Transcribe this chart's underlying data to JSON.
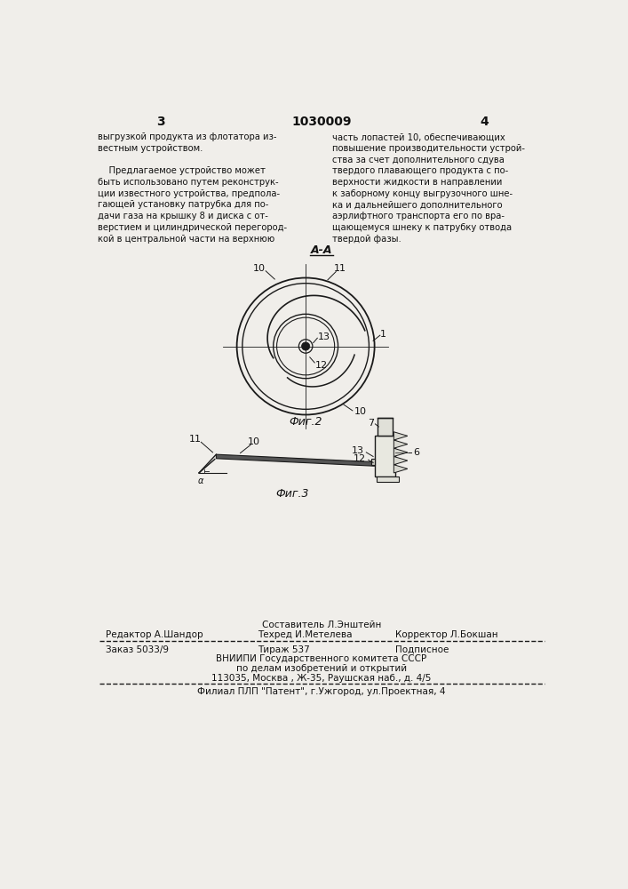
{
  "bg_color": "#f0eeea",
  "page_num_left": "3",
  "page_num_center": "1030009",
  "page_num_right": "4",
  "col1_text": [
    "выгрузкой продукта из флотатора из-",
    "вестным устройством.",
    "",
    "    Предлагаемое устройство может",
    "быть использовано путем реконструк-",
    "ции известного устройства, предпола-",
    "гающей установку патрубка для по-",
    "дачи газа на крышку 8 и диска с от-",
    "верстием и цилиндрической перегород-",
    "кой в центральной части на верхнюю"
  ],
  "col2_text": [
    "часть лопастей 10, обеспечивающих  ",
    "повышение производительности устрой-",
    "ства за счет дополнительного сдува",
    "твердого плавающего продукта с по-",
    "верхности жидкости в направлении",
    "к заборному концу выгрузочного шне-",
    "ка и дальнейшего дополнительного  ",
    "аэрлифтного транспорта его по вра-",
    "щающемуся шнеку к патрубку отвода",
    "твердой фазы."
  ],
  "section_label": "А-А",
  "fig2_label": "Фиг.2",
  "fig3_label": "Фиг.3",
  "footer_line1_left": "Редактор А.Шандор",
  "footer_compiler": "Составитель Л.Энштейн",
  "footer_techred": "Техред И.Метелева",
  "footer_corrector": "Корректор Л.Бокшан",
  "footer_order": "Заказ 5033/9",
  "footer_copies": "Тираж 537",
  "footer_type": "Подписное",
  "footer_org1": "ВНИИПИ Государственного комитета СССР",
  "footer_org2": "по делам изобретений и открытий",
  "footer_org3": "113035, Москва , Ж-35, Раушская наб., д. 4/5",
  "footer_branch": "Филиал ПЛП \"Патент\", г.Ужгород, ул.Проектная, 4"
}
